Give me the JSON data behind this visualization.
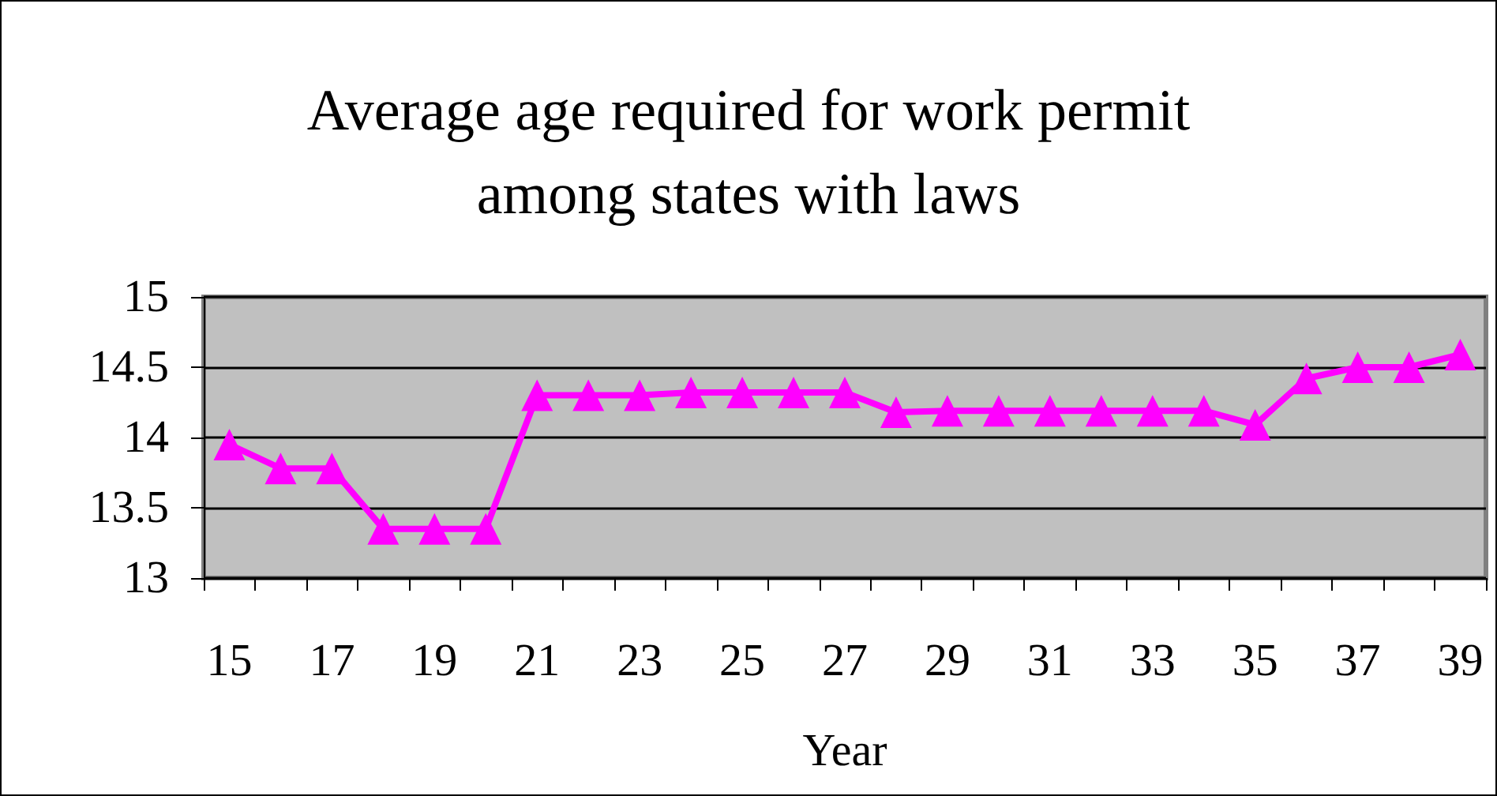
{
  "chart_data": {
    "type": "line",
    "title": "Average age required for work permit\namong states with laws",
    "xlabel": "Year",
    "categories": [
      "15",
      null,
      "17",
      null,
      "19",
      null,
      "21",
      null,
      "23",
      null,
      "25",
      null,
      "27",
      null,
      "29",
      null,
      "31",
      null,
      "33",
      null,
      "35",
      null,
      "37",
      null,
      "39"
    ],
    "series": [
      {
        "color": "#ff00ff",
        "values": [
          13.95,
          13.78,
          13.78,
          13.35,
          13.35,
          13.35,
          14.3,
          14.3,
          14.3,
          14.32,
          14.32,
          14.32,
          14.32,
          14.18,
          14.19,
          14.19,
          14.19,
          14.19,
          14.19,
          14.19,
          14.09,
          14.42,
          14.5,
          14.5,
          14.59
        ]
      }
    ],
    "ylim": [
      13,
      15
    ],
    "yticks": [
      13,
      13.5,
      14,
      14.5,
      15
    ],
    "grid": "y",
    "marker": "triangle",
    "line_style": "solid"
  }
}
